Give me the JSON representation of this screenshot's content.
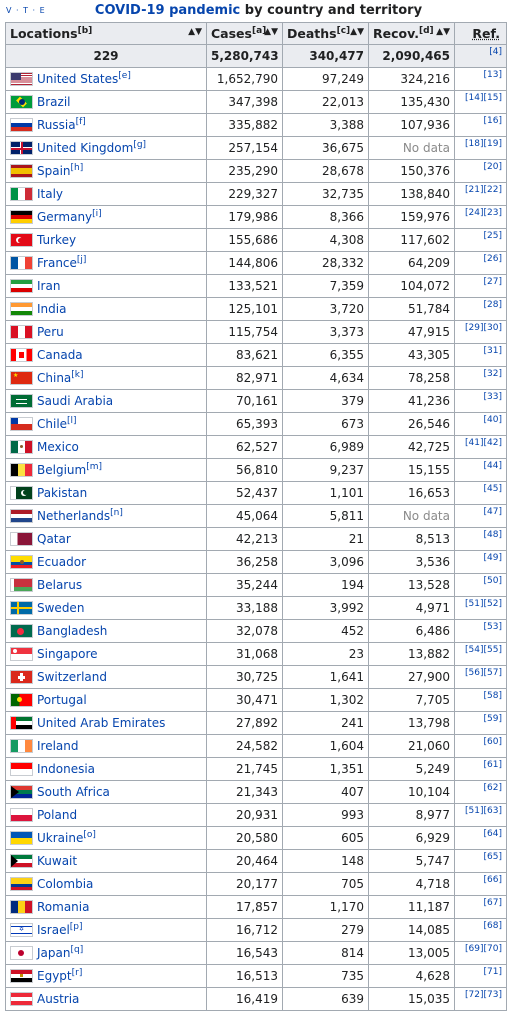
{
  "caption": {
    "vte": "V · T · E",
    "link": "COVID-19 pandemic",
    "rest": " by country and territory"
  },
  "headers": {
    "locations": "Locations",
    "locations_note": "[b]",
    "cases": "Cases",
    "cases_note": "[a]",
    "deaths": "Deaths",
    "deaths_note": "[c]",
    "recov": "Recov.",
    "recov_note": "[d]",
    "ref": "Ref."
  },
  "totals": {
    "locations": "229",
    "cases": "5,280,743",
    "deaths": "340,477",
    "recov": "2,090,465",
    "ref": "[4]"
  },
  "rows": [
    {
      "name": "United States",
      "note": "[e]",
      "cases": "1,652,790",
      "deaths": "97,249",
      "recov": "324,216",
      "ref": "[13]",
      "flag": "us"
    },
    {
      "name": "Brazil",
      "note": "",
      "cases": "347,398",
      "deaths": "22,013",
      "recov": "135,430",
      "ref": "[14][15]",
      "flag": "br"
    },
    {
      "name": "Russia",
      "note": "[f]",
      "cases": "335,882",
      "deaths": "3,388",
      "recov": "107,936",
      "ref": "[16]",
      "flag": "ru"
    },
    {
      "name": "United Kingdom",
      "note": "[g]",
      "cases": "257,154",
      "deaths": "36,675",
      "recov": "No data",
      "ref": "[18][19]",
      "flag": "uk"
    },
    {
      "name": "Spain",
      "note": "[h]",
      "cases": "235,290",
      "deaths": "28,678",
      "recov": "150,376",
      "ref": "[20]",
      "flag": "es"
    },
    {
      "name": "Italy",
      "note": "",
      "cases": "229,327",
      "deaths": "32,735",
      "recov": "138,840",
      "ref": "[21][22]",
      "flag": "it"
    },
    {
      "name": "Germany",
      "note": "[i]",
      "cases": "179,986",
      "deaths": "8,366",
      "recov": "159,976",
      "ref": "[24][23]",
      "flag": "de"
    },
    {
      "name": "Turkey",
      "note": "",
      "cases": "155,686",
      "deaths": "4,308",
      "recov": "117,602",
      "ref": "[25]",
      "flag": "tr"
    },
    {
      "name": "France",
      "note": "[j]",
      "cases": "144,806",
      "deaths": "28,332",
      "recov": "64,209",
      "ref": "[26]",
      "flag": "fr"
    },
    {
      "name": "Iran",
      "note": "",
      "cases": "133,521",
      "deaths": "7,359",
      "recov": "104,072",
      "ref": "[27]",
      "flag": "ir"
    },
    {
      "name": "India",
      "note": "",
      "cases": "125,101",
      "deaths": "3,720",
      "recov": "51,784",
      "ref": "[28]",
      "flag": "in"
    },
    {
      "name": "Peru",
      "note": "",
      "cases": "115,754",
      "deaths": "3,373",
      "recov": "47,915",
      "ref": "[29][30]",
      "flag": "pe"
    },
    {
      "name": "Canada",
      "note": "",
      "cases": "83,621",
      "deaths": "6,355",
      "recov": "43,305",
      "ref": "[31]",
      "flag": "ca"
    },
    {
      "name": "China",
      "note": "[k]",
      "cases": "82,971",
      "deaths": "4,634",
      "recov": "78,258",
      "ref": "[32]",
      "flag": "cn"
    },
    {
      "name": "Saudi Arabia",
      "note": "",
      "cases": "70,161",
      "deaths": "379",
      "recov": "41,236",
      "ref": "[33]",
      "flag": "sa"
    },
    {
      "name": "Chile",
      "note": "[l]",
      "cases": "65,393",
      "deaths": "673",
      "recov": "26,546",
      "ref": "[40]",
      "flag": "cl"
    },
    {
      "name": "Mexico",
      "note": "",
      "cases": "62,527",
      "deaths": "6,989",
      "recov": "42,725",
      "ref": "[41][42]",
      "flag": "mx"
    },
    {
      "name": "Belgium",
      "note": "[m]",
      "cases": "56,810",
      "deaths": "9,237",
      "recov": "15,155",
      "ref": "[44]",
      "flag": "be"
    },
    {
      "name": "Pakistan",
      "note": "",
      "cases": "52,437",
      "deaths": "1,101",
      "recov": "16,653",
      "ref": "[45]",
      "flag": "pk"
    },
    {
      "name": "Netherlands",
      "note": "[n]",
      "cases": "45,064",
      "deaths": "5,811",
      "recov": "No data",
      "ref": "[47]",
      "flag": "nl"
    },
    {
      "name": "Qatar",
      "note": "",
      "cases": "42,213",
      "deaths": "21",
      "recov": "8,513",
      "ref": "[48]",
      "flag": "qa"
    },
    {
      "name": "Ecuador",
      "note": "",
      "cases": "36,258",
      "deaths": "3,096",
      "recov": "3,536",
      "ref": "[49]",
      "flag": "ec"
    },
    {
      "name": "Belarus",
      "note": "",
      "cases": "35,244",
      "deaths": "194",
      "recov": "13,528",
      "ref": "[50]",
      "flag": "by"
    },
    {
      "name": "Sweden",
      "note": "",
      "cases": "33,188",
      "deaths": "3,992",
      "recov": "4,971",
      "ref": "[51][52]",
      "flag": "se"
    },
    {
      "name": "Bangladesh",
      "note": "",
      "cases": "32,078",
      "deaths": "452",
      "recov": "6,486",
      "ref": "[53]",
      "flag": "bd"
    },
    {
      "name": "Singapore",
      "note": "",
      "cases": "31,068",
      "deaths": "23",
      "recov": "13,882",
      "ref": "[54][55]",
      "flag": "sg"
    },
    {
      "name": "Switzerland",
      "note": "",
      "cases": "30,725",
      "deaths": "1,641",
      "recov": "27,900",
      "ref": "[56][57]",
      "flag": "ch"
    },
    {
      "name": "Portugal",
      "note": "",
      "cases": "30,471",
      "deaths": "1,302",
      "recov": "7,705",
      "ref": "[58]",
      "flag": "pt"
    },
    {
      "name": "United Arab Emirates",
      "note": "",
      "cases": "27,892",
      "deaths": "241",
      "recov": "13,798",
      "ref": "[59]",
      "flag": "ae"
    },
    {
      "name": "Ireland",
      "note": "",
      "cases": "24,582",
      "deaths": "1,604",
      "recov": "21,060",
      "ref": "[60]",
      "flag": "ie"
    },
    {
      "name": "Indonesia",
      "note": "",
      "cases": "21,745",
      "deaths": "1,351",
      "recov": "5,249",
      "ref": "[61]",
      "flag": "id"
    },
    {
      "name": "South Africa",
      "note": "",
      "cases": "21,343",
      "deaths": "407",
      "recov": "10,104",
      "ref": "[62]",
      "flag": "za"
    },
    {
      "name": "Poland",
      "note": "",
      "cases": "20,931",
      "deaths": "993",
      "recov": "8,977",
      "ref": "[51][63]",
      "flag": "pl"
    },
    {
      "name": "Ukraine",
      "note": "[o]",
      "cases": "20,580",
      "deaths": "605",
      "recov": "6,929",
      "ref": "[64]",
      "flag": "ua"
    },
    {
      "name": "Kuwait",
      "note": "",
      "cases": "20,464",
      "deaths": "148",
      "recov": "5,747",
      "ref": "[65]",
      "flag": "kw"
    },
    {
      "name": "Colombia",
      "note": "",
      "cases": "20,177",
      "deaths": "705",
      "recov": "4,718",
      "ref": "[66]",
      "flag": "co"
    },
    {
      "name": "Romania",
      "note": "",
      "cases": "17,857",
      "deaths": "1,170",
      "recov": "11,187",
      "ref": "[67]",
      "flag": "ro"
    },
    {
      "name": "Israel",
      "note": "[p]",
      "cases": "16,712",
      "deaths": "279",
      "recov": "14,085",
      "ref": "[68]",
      "flag": "il"
    },
    {
      "name": "Japan",
      "note": "[q]",
      "cases": "16,543",
      "deaths": "814",
      "recov": "13,005",
      "ref": "[69][70]",
      "flag": "jp"
    },
    {
      "name": "Egypt",
      "note": "[r]",
      "cases": "16,513",
      "deaths": "735",
      "recov": "4,628",
      "ref": "[71]",
      "flag": "eg"
    },
    {
      "name": "Austria",
      "note": "",
      "cases": "16,419",
      "deaths": "639",
      "recov": "15,035",
      "ref": "[72][73]",
      "flag": "at"
    }
  ]
}
